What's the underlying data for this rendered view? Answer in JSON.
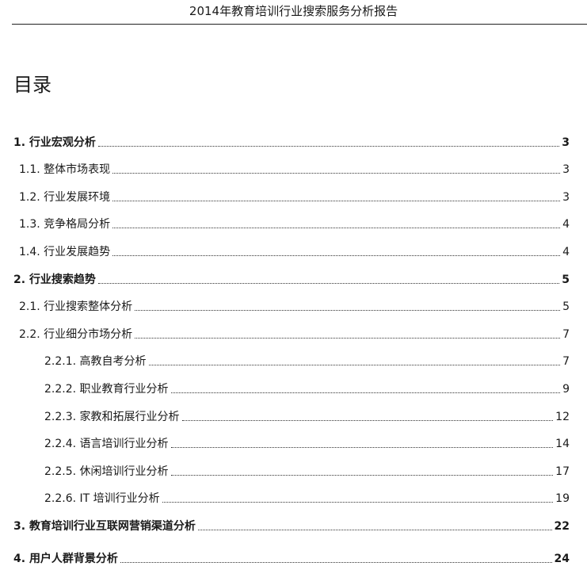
{
  "header": {
    "title": "2014年教育培训行业搜索服务分析报告"
  },
  "toc": {
    "title": "目录",
    "entries": [
      {
        "num": "1.",
        "label": "行业宏观分析",
        "page": "3",
        "level": 1
      },
      {
        "num": "1.1.",
        "label": "整体市场表现",
        "page": "3",
        "level": 2
      },
      {
        "num": "1.2.",
        "label": "行业发展环境",
        "page": "3",
        "level": 2
      },
      {
        "num": "1.3.",
        "label": "竞争格局分析",
        "page": "4",
        "level": 2
      },
      {
        "num": "1.4.",
        "label": "行业发展趋势",
        "page": "4",
        "level": 2
      },
      {
        "num": "2.",
        "label": "行业搜索趋势",
        "page": "5",
        "level": 1
      },
      {
        "num": "2.1.",
        "label": "行业搜索整体分析",
        "page": "5",
        "level": 2
      },
      {
        "num": "2.2.",
        "label": "行业细分市场分析",
        "page": "7",
        "level": 2
      },
      {
        "num": "2.2.1.",
        "label": "高教自考分析",
        "page": "7",
        "level": 3
      },
      {
        "num": "2.2.2.",
        "label": "职业教育行业分析",
        "page": "9",
        "level": 3
      },
      {
        "num": "2.2.3.",
        "label": "家教和拓展行业分析",
        "page": "12",
        "level": 3
      },
      {
        "num": "2.2.4.",
        "label": "语言培训行业分析",
        "page": "14",
        "level": 3
      },
      {
        "num": "2.2.5.",
        "label": "休闲培训行业分析",
        "page": "17",
        "level": 3
      },
      {
        "num": "2.2.6.",
        "label": "IT 培训行业分析",
        "page": "19",
        "level": 3
      },
      {
        "num": "3.",
        "label": "教育培训行业互联网营销渠道分析",
        "page": "22",
        "level": 1
      },
      {
        "num": "4.",
        "label": "用户人群背景分析",
        "page": "24",
        "level": 1
      }
    ]
  }
}
